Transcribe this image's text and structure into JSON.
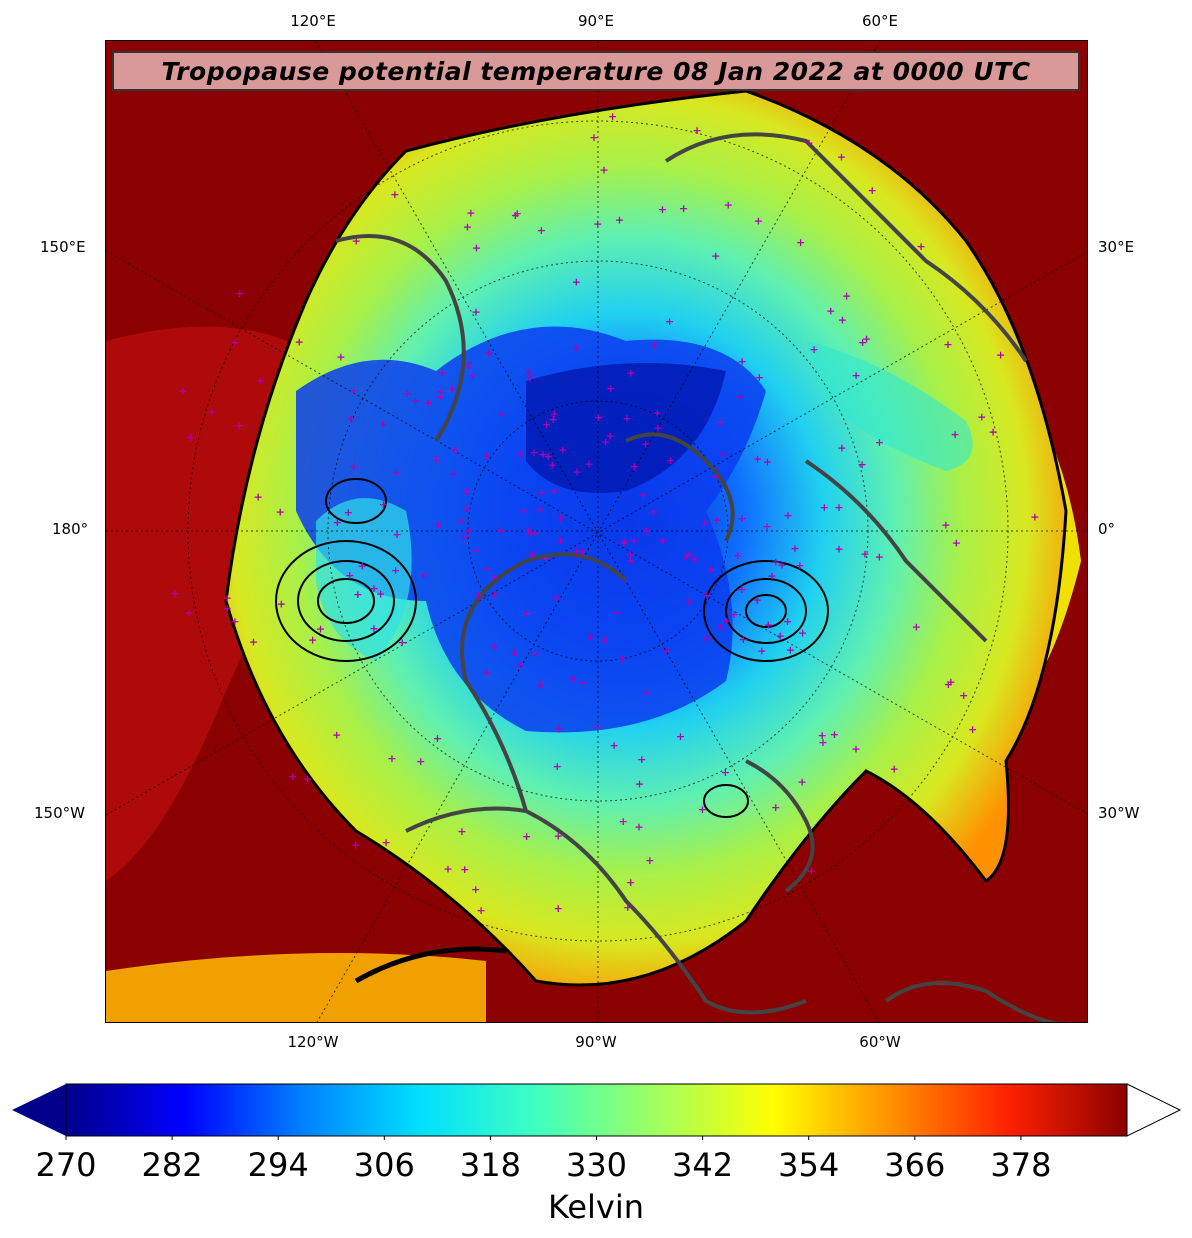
{
  "map": {
    "title": "Tropopause potential temperature 08 Jan 2022 at 0000 UTC",
    "lon_labels_top": [
      "120°E",
      "90°E",
      "60°E"
    ],
    "lon_labels_bottom": [
      "120°W",
      "90°W",
      "60°W"
    ],
    "lat_labels_left": [
      "150°E",
      "180°",
      "150°W"
    ],
    "lat_labels_right": [
      "30°E",
      "0°",
      "30°W"
    ],
    "colors": {
      "outer": "#8b0000",
      "ring_yellow": "#e6e600",
      "ring_green": "#a0f050",
      "cyan": "#20d8e8",
      "blue": "#1060f0",
      "deep_blue": "#0020c0",
      "station_marker": "#b000b0",
      "coastline": "#444444"
    }
  },
  "colorbar": {
    "units": "Kelvin",
    "ticks": [
      "270",
      "282",
      "294",
      "306",
      "318",
      "330",
      "342",
      "354",
      "366",
      "378"
    ],
    "stops": [
      "#00008b",
      "#0000ff",
      "#0080ff",
      "#00e0ff",
      "#40ffc0",
      "#a0ff60",
      "#ffff00",
      "#ff9000",
      "#ff2000",
      "#8b0000"
    ]
  }
}
